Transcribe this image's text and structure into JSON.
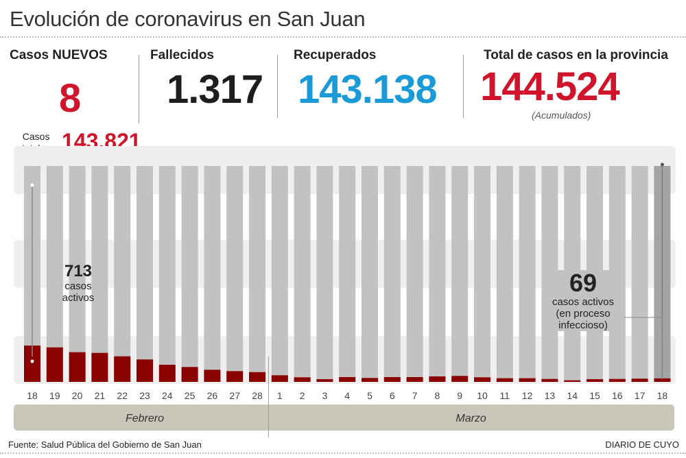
{
  "title": "Evolución de coronavirus en San Juan",
  "stats": {
    "new_cases": {
      "label": "Casos NUEVOS",
      "value": "8"
    },
    "deaths": {
      "label": "Fallecidos",
      "value": "1.317"
    },
    "recovered": {
      "label": "Recuperados",
      "value": "143.138"
    },
    "total": {
      "label": "Total de casos en la provincia",
      "value": "144.524",
      "note": "(Acumulados)"
    },
    "total_cases": {
      "label_line1": "Casos",
      "label_line2": "totales",
      "value": "143.821"
    }
  },
  "colors": {
    "red": "#d0142c",
    "blue": "#1a9ad6",
    "dark": "#1e1e1e",
    "active_bar": "#8b0000",
    "total_bar": "#c2c2c2",
    "last_bar": "#a4a4a4",
    "month_band": "#c9c7b9"
  },
  "annotations": {
    "start": {
      "value": "713",
      "line1": "casos",
      "line2": "activos"
    },
    "end": {
      "value": "69",
      "line1": "casos activos",
      "line2": "(en proceso",
      "line3": "infeccioso)"
    }
  },
  "chart_data": {
    "type": "bar",
    "categories": [
      "18",
      "19",
      "20",
      "21",
      "22",
      "23",
      "24",
      "25",
      "26",
      "27",
      "28",
      "1",
      "2",
      "3",
      "4",
      "5",
      "6",
      "7",
      "8",
      "9",
      "10",
      "11",
      "12",
      "13",
      "14",
      "15",
      "16",
      "17",
      "18"
    ],
    "months": [
      {
        "label": "Febrero",
        "from": 0,
        "to": 10
      },
      {
        "label": "Marzo",
        "from": 11,
        "to": 28
      }
    ],
    "series": [
      {
        "values": [
          713,
          677,
          583,
          569,
          502,
          440,
          336,
          292,
          238,
          211,
          192,
          130,
          90,
          54,
          94,
          77,
          94,
          94,
          108,
          117,
          90,
          72,
          72,
          58,
          31,
          54,
          58,
          63,
          69
        ]
      }
    ],
    "axis_break": true,
    "grid": false
  },
  "footer": {
    "source": "Fuente: Salud Pública del Gobierno de San Juan",
    "brand": "DIARIO DE CUYO"
  }
}
